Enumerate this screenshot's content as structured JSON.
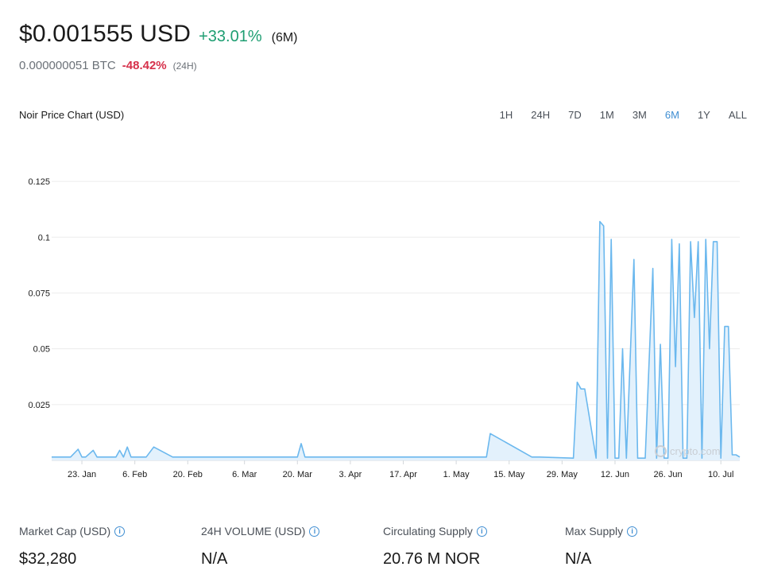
{
  "header": {
    "price": "$0.001555 USD",
    "change": "+33.01%",
    "period": "(6M)",
    "btc_price": "0.000000051 BTC",
    "btc_change": "-48.42%",
    "btc_period": "(24H)"
  },
  "chart_title": "Noir Price Chart (USD)",
  "ranges": [
    "1H",
    "24H",
    "7D",
    "1M",
    "3M",
    "6M",
    "1Y",
    "ALL"
  ],
  "active_range": "6M",
  "watermark": "crypto.com",
  "colors": {
    "line": "#6bb8ee",
    "fill": "#e3f1fc",
    "positive": "#1e9e72",
    "negative": "#d6304a",
    "accent": "#3f8ed2"
  },
  "stats": [
    {
      "label": "Market Cap (USD)",
      "value": "$32,280"
    },
    {
      "label": "24H VOLUME (USD)",
      "value": "N/A"
    },
    {
      "label": "Circulating Supply",
      "value": "20.76 M NOR"
    },
    {
      "label": "Max Supply",
      "value": "N/A"
    }
  ],
  "chart_data": {
    "type": "line",
    "title": "Noir Price Chart (USD)",
    "xlabel": "",
    "ylabel": "",
    "y_ticks": [
      0.025,
      0.05,
      0.075,
      0.1,
      0.125
    ],
    "y_tick_labels": [
      "0.025",
      "0.05",
      "0.075",
      "0.1",
      "0.125"
    ],
    "ylim": [
      0,
      0.135
    ],
    "x_range": [
      "2024-01-15",
      "2024-07-15"
    ],
    "x_ticks": [
      "2024-01-23",
      "2024-02-06",
      "2024-02-20",
      "2024-03-06",
      "2024-03-20",
      "2024-04-03",
      "2024-04-17",
      "2024-05-01",
      "2024-05-15",
      "2024-05-29",
      "2024-06-12",
      "2024-06-26",
      "2024-07-10"
    ],
    "x_tick_labels": [
      "23. Jan",
      "6. Feb",
      "20. Feb",
      "6. Mar",
      "20. Mar",
      "3. Apr",
      "17. Apr",
      "1. May",
      "15. May",
      "29. May",
      "12. Jun",
      "26. Jun",
      "10. Jul"
    ],
    "grid": true,
    "series": [
      {
        "x": [
          "2024-01-15",
          "2024-01-20",
          "2024-01-22",
          "2024-01-23",
          "2024-01-24",
          "2024-01-26",
          "2024-01-27",
          "2024-01-28",
          "2024-01-29",
          "2024-02-01",
          "2024-02-02",
          "2024-02-03",
          "2024-02-04",
          "2024-02-05",
          "2024-02-06",
          "2024-02-07",
          "2024-02-08",
          "2024-02-09",
          "2024-02-11",
          "2024-02-16",
          "2024-02-17",
          "2024-02-18",
          "2024-02-19",
          "2024-03-20",
          "2024-03-21",
          "2024-03-22",
          "2024-04-20",
          "2024-04-21",
          "2024-04-22",
          "2024-05-07",
          "2024-05-09",
          "2024-05-10",
          "2024-05-21",
          "2024-05-22",
          "2024-05-23",
          "2024-06-01",
          "2024-06-02",
          "2024-06-03",
          "2024-06-04",
          "2024-06-07",
          "2024-06-08",
          "2024-06-09",
          "2024-06-10",
          "2024-06-11",
          "2024-06-12",
          "2024-06-13",
          "2024-06-14",
          "2024-06-15",
          "2024-06-17",
          "2024-06-18",
          "2024-06-19",
          "2024-06-20",
          "2024-06-22",
          "2024-06-23",
          "2024-06-24",
          "2024-06-25",
          "2024-06-26",
          "2024-06-27",
          "2024-06-28",
          "2024-06-29",
          "2024-06-30",
          "2024-07-01",
          "2024-07-02",
          "2024-07-03",
          "2024-07-04",
          "2024-07-05",
          "2024-07-06",
          "2024-07-07",
          "2024-07-08",
          "2024-07-09",
          "2024-07-10",
          "2024-07-11",
          "2024-07-12",
          "2024-07-13",
          "2024-07-14",
          "2024-07-15"
        ],
        "y": [
          0.0015,
          0.0015,
          0.005,
          0.0015,
          0.0015,
          0.0045,
          0.0015,
          0.0015,
          0.0015,
          0.0015,
          0.0045,
          0.0015,
          0.006,
          0.0015,
          0.0015,
          0.0015,
          0.0015,
          0.0015,
          0.006,
          0.0015,
          0.0015,
          0.0015,
          0.0015,
          0.0015,
          0.0075,
          0.0015,
          0.0015,
          0.0015,
          0.0015,
          0.0015,
          0.0015,
          0.012,
          0.0015,
          0.0015,
          0.0015,
          0.001,
          0.035,
          0.032,
          0.032,
          0.001,
          0.107,
          0.105,
          0.001,
          0.099,
          0.001,
          0.001,
          0.05,
          0.001,
          0.09,
          0.001,
          0.001,
          0.001,
          0.086,
          0.001,
          0.052,
          0.001,
          0.001,
          0.099,
          0.042,
          0.097,
          0.001,
          0.001,
          0.098,
          0.064,
          0.098,
          0.001,
          0.099,
          0.05,
          0.098,
          0.098,
          0.001,
          0.06,
          0.06,
          0.0025,
          0.0025,
          0.0015
        ]
      }
    ]
  }
}
